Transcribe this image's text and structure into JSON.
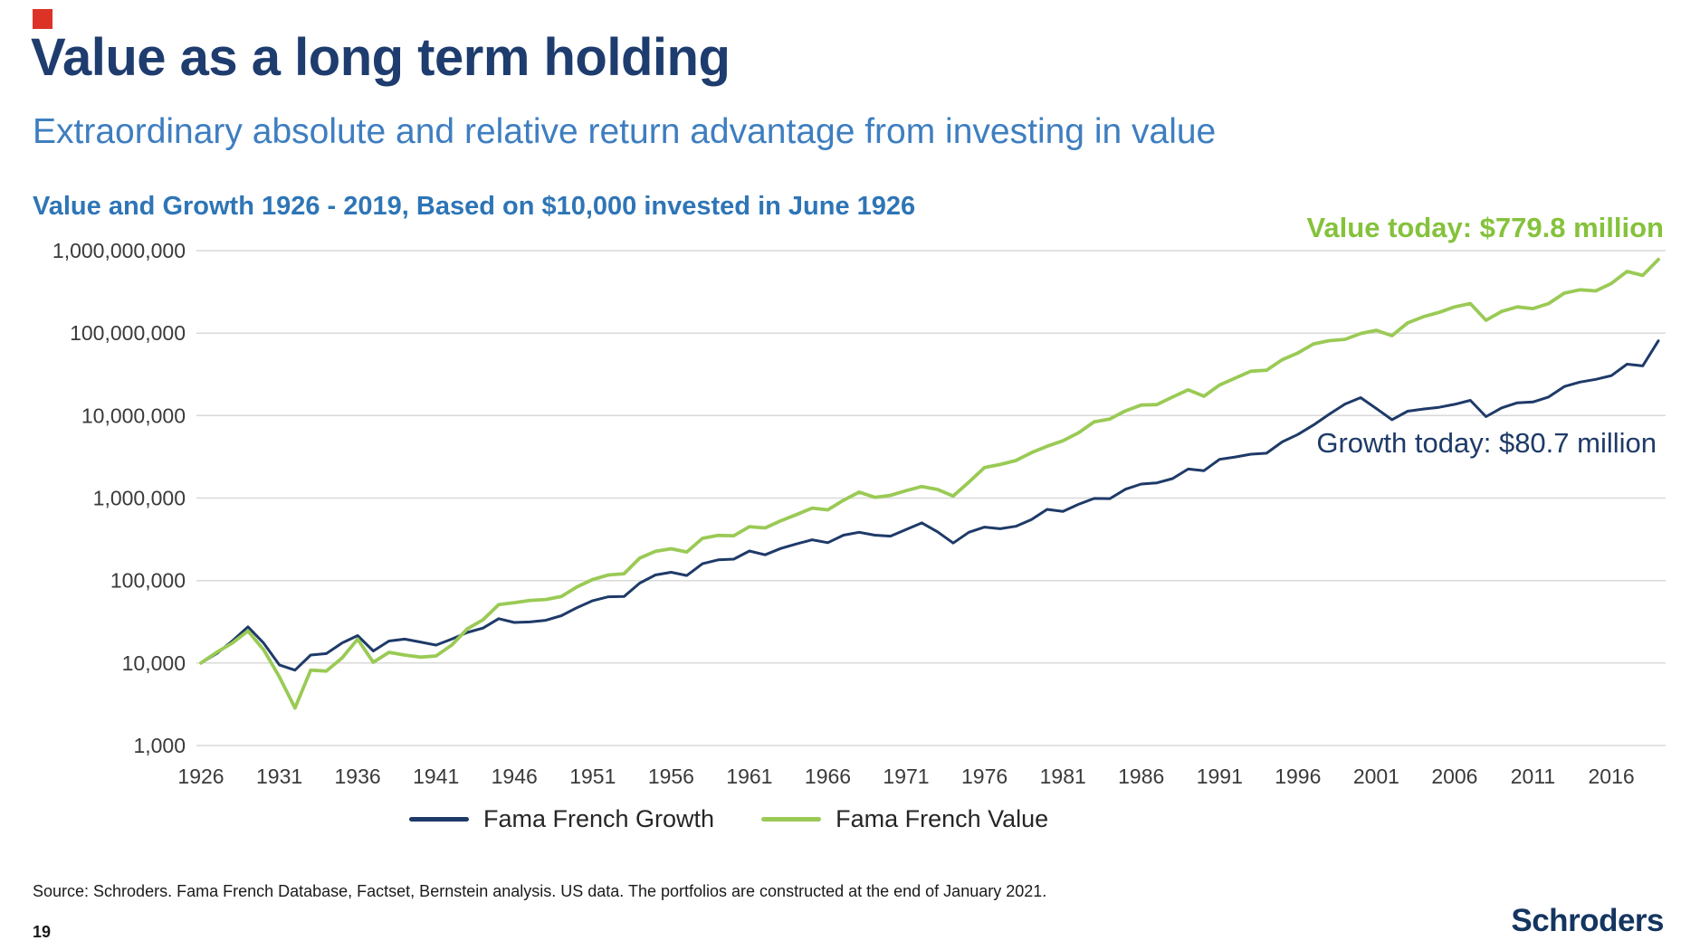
{
  "slide": {
    "title": "Value as a long term holding",
    "subtitle": "Extraordinary absolute and relative return advantage from investing in value",
    "source": "Source: Schroders. Fama French Database, Factset, Bernstein analysis. US data. The portfolios are constructed at the end of January 2021.",
    "page_number": "19",
    "brand": "Schroders"
  },
  "annotations": {
    "value_today": "Value today: $779.8 million",
    "growth_today": "Growth today: $80.7 million"
  },
  "colors": {
    "navy": "#1e3a68",
    "green_line": "#9aca55",
    "green_text": "#85c23c",
    "title_navy": "#1e3c6e",
    "subtitle_blue": "#3e7ec0",
    "chart_title_blue": "#2e75b6",
    "grid": "#d9d9d9",
    "axis_text": "#3a3a3a"
  },
  "chart_data": {
    "type": "line",
    "title": "Value and Growth 1926 - 2019, Based on $10,000 invested in June 1926",
    "y_scale": "log",
    "ylim": [
      1000,
      1000000000
    ],
    "y_ticks": [
      1000,
      10000,
      100000,
      1000000,
      10000000,
      100000000,
      1000000000
    ],
    "y_tick_labels": [
      "1,000",
      "10,000",
      "100,000",
      "1,000,000",
      "10,000,000",
      "100,000,000",
      "1,000,000,000"
    ],
    "x_ticks": [
      1926,
      1931,
      1936,
      1941,
      1946,
      1951,
      1956,
      1961,
      1966,
      1971,
      1976,
      1981,
      1986,
      1991,
      1996,
      2001,
      2006,
      2011,
      2016
    ],
    "x_start": 1926,
    "x_end": 2019,
    "x_step": 1,
    "grid": true,
    "legend_position": "bottom",
    "series": [
      {
        "name": "Fama French Growth",
        "color_key": "navy",
        "end_value_label": "$80.7 million",
        "values": [
          10000,
          13000,
          18500,
          27500,
          17500,
          9500,
          8200,
          12500,
          13000,
          17500,
          21500,
          14000,
          18500,
          19500,
          18000,
          16500,
          19500,
          23500,
          26500,
          34500,
          31000,
          31500,
          33000,
          37500,
          47000,
          57000,
          63500,
          64000,
          93000,
          117000,
          126000,
          115000,
          160000,
          178000,
          182000,
          228000,
          205000,
          245000,
          278000,
          312000,
          288000,
          355000,
          385000,
          355000,
          345000,
          415000,
          500000,
          390000,
          285000,
          385000,
          445000,
          425000,
          455000,
          550000,
          730000,
          690000,
          840000,
          990000,
          985000,
          1280000,
          1480000,
          1530000,
          1720000,
          2250000,
          2150000,
          2950000,
          3150000,
          3400000,
          3500000,
          4800000,
          5900000,
          7700000,
          10400000,
          13800000,
          16500000,
          12200000,
          8900000,
          11300000,
          12000000,
          12600000,
          13700000,
          15300000,
          9700000,
          12400000,
          14300000,
          14600000,
          16800000,
          22500000,
          25500000,
          27500000,
          30500000,
          42000000,
          40000000,
          80700000
        ]
      },
      {
        "name": "Fama French Value",
        "color_key": "green_line",
        "end_value_label": "$779.8 million",
        "values": [
          10000,
          13500,
          17500,
          24500,
          14500,
          6800,
          2850,
          8200,
          8000,
          11500,
          19500,
          10200,
          13500,
          12500,
          11800,
          12200,
          16500,
          26000,
          33500,
          51000,
          54000,
          57500,
          59000,
          64000,
          84000,
          103000,
          117000,
          121000,
          187000,
          226000,
          243000,
          222000,
          325000,
          352000,
          350000,
          450000,
          435000,
          530000,
          630000,
          755000,
          720000,
          940000,
          1180000,
          1020000,
          1080000,
          1230000,
          1380000,
          1270000,
          1060000,
          1560000,
          2350000,
          2550000,
          2850000,
          3550000,
          4250000,
          4950000,
          6200000,
          8400000,
          9100000,
          11400000,
          13400000,
          13600000,
          16800000,
          20500000,
          17200000,
          23500000,
          28500000,
          34500000,
          35500000,
          47500000,
          57500000,
          74000000,
          81000000,
          84000000,
          99000000,
          108000000,
          93000000,
          133000000,
          158000000,
          178000000,
          208000000,
          228000000,
          143000000,
          183000000,
          208000000,
          198000000,
          228000000,
          305000000,
          335000000,
          325000000,
          400000000,
          560000000,
          500000000,
          779800000
        ]
      }
    ]
  }
}
